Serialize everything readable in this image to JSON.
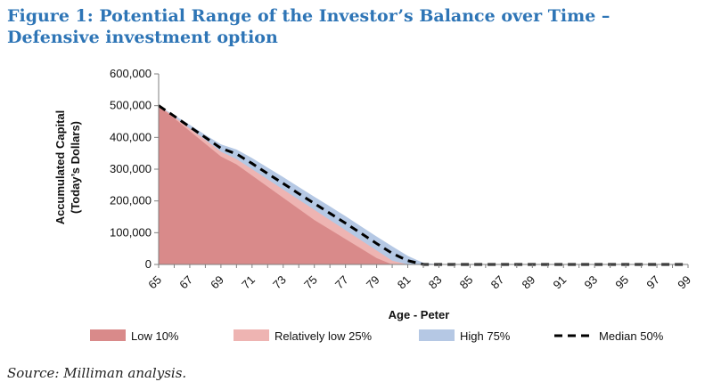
{
  "header": {
    "title": "Figure 1: Potential Range of the Investor’s Balance over Time – Defensive investment option"
  },
  "footer": {
    "source": "Source: Milliman analysis."
  },
  "chart_data": {
    "type": "area",
    "xlabel": "Age - Peter",
    "ylabel_line1": "Accumulated Capital",
    "ylabel_line2": "(Today’s Dollars)",
    "ylim": [
      0,
      600000
    ],
    "yticks": [
      0,
      100000,
      200000,
      300000,
      400000,
      500000,
      600000
    ],
    "ytick_labels": [
      "0",
      "100,000",
      "200,000",
      "300,000",
      "400,000",
      "500,000",
      "600,000"
    ],
    "xlim": [
      65,
      99
    ],
    "xticks": [
      65,
      67,
      69,
      71,
      73,
      75,
      77,
      79,
      81,
      83,
      85,
      87,
      89,
      91,
      93,
      95,
      97,
      99
    ],
    "grid": false,
    "legend_position": "bottom",
    "colors": {
      "low10": "#d98a8a",
      "low25": "#eeb4b2",
      "high75": "#b5c8e4",
      "median": "#000000",
      "axis": "#7f7f7f"
    },
    "x": [
      65,
      66,
      67,
      68,
      69,
      70,
      71,
      72,
      73,
      74,
      75,
      76,
      77,
      78,
      79,
      80,
      81,
      82,
      83,
      84,
      85,
      86,
      87,
      88,
      89,
      90,
      91,
      92,
      93,
      94,
      95,
      96,
      97,
      98,
      99
    ],
    "series": [
      {
        "name": "Low 10%",
        "key": "low10",
        "style": "area",
        "values": [
          500000,
          460000,
          420000,
          380000,
          340000,
          315000,
          280000,
          245000,
          210000,
          175000,
          140000,
          110000,
          80000,
          50000,
          20000,
          0,
          0,
          0,
          0,
          0,
          0,
          0,
          0,
          0,
          0,
          0,
          0,
          0,
          0,
          0,
          0,
          0,
          0,
          0,
          0
        ]
      },
      {
        "name": "Relatively low 25%",
        "key": "low25",
        "style": "area",
        "values": [
          500000,
          465000,
          428000,
          392000,
          355000,
          332000,
          300000,
          268000,
          236000,
          204000,
          172000,
          140000,
          108000,
          76000,
          44000,
          12000,
          0,
          0,
          0,
          0,
          0,
          0,
          0,
          0,
          0,
          0,
          0,
          0,
          0,
          0,
          0,
          0,
          0,
          0,
          0
        ]
      },
      {
        "name": "High 75%",
        "key": "high75",
        "style": "area",
        "values": [
          500000,
          470000,
          440000,
          408000,
          378000,
          362000,
          335000,
          305000,
          275000,
          244000,
          213000,
          183000,
          152000,
          120000,
          88000,
          57000,
          27000,
          5000,
          0,
          0,
          0,
          0,
          0,
          0,
          0,
          0,
          0,
          0,
          0,
          0,
          0,
          0,
          0,
          0,
          0
        ]
      },
      {
        "name": "Median 50%",
        "key": "median",
        "style": "dashed-line",
        "values": [
          500000,
          467000,
          433000,
          400000,
          366000,
          348000,
          318000,
          286000,
          255000,
          223000,
          192000,
          161000,
          130000,
          98000,
          66000,
          35000,
          12000,
          0,
          0,
          0,
          0,
          0,
          0,
          0,
          0,
          0,
          0,
          0,
          0,
          0,
          0,
          0,
          0,
          0,
          0
        ]
      }
    ]
  }
}
